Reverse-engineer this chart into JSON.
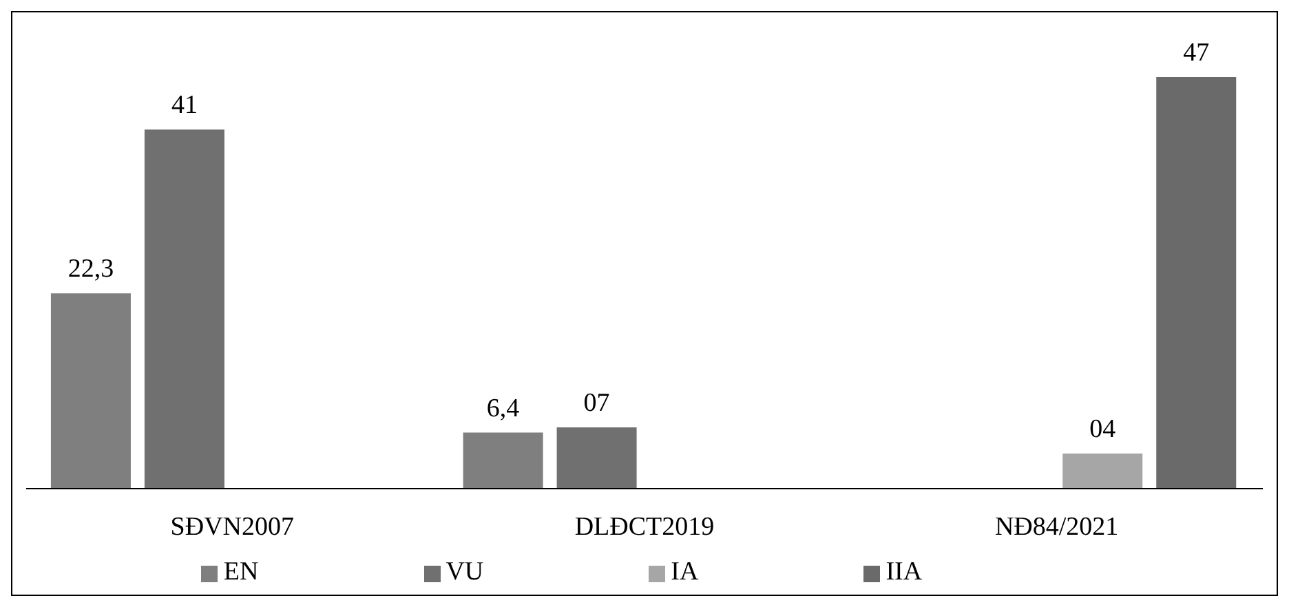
{
  "chart_data": {
    "type": "bar",
    "categories": [
      "SĐVN2007",
      "DLĐCT2019",
      "NĐ84/2021"
    ],
    "series": [
      {
        "name": "EN",
        "color": "#7f7f7f",
        "values": [
          22.3,
          6.4,
          null
        ],
        "value_labels": [
          "22,3",
          "6,4",
          null
        ]
      },
      {
        "name": "VU",
        "color": "#707070",
        "values": [
          41,
          7,
          null
        ],
        "value_labels": [
          "41",
          "07",
          null
        ]
      },
      {
        "name": "IA",
        "color": "#a6a6a6",
        "values": [
          null,
          null,
          4
        ],
        "value_labels": [
          null,
          null,
          "04"
        ]
      },
      {
        "name": "IIA",
        "color": "#6a6a6a",
        "values": [
          null,
          null,
          47
        ],
        "value_labels": [
          null,
          null,
          "47"
        ]
      }
    ],
    "legend": "bottom",
    "grid": false
  }
}
